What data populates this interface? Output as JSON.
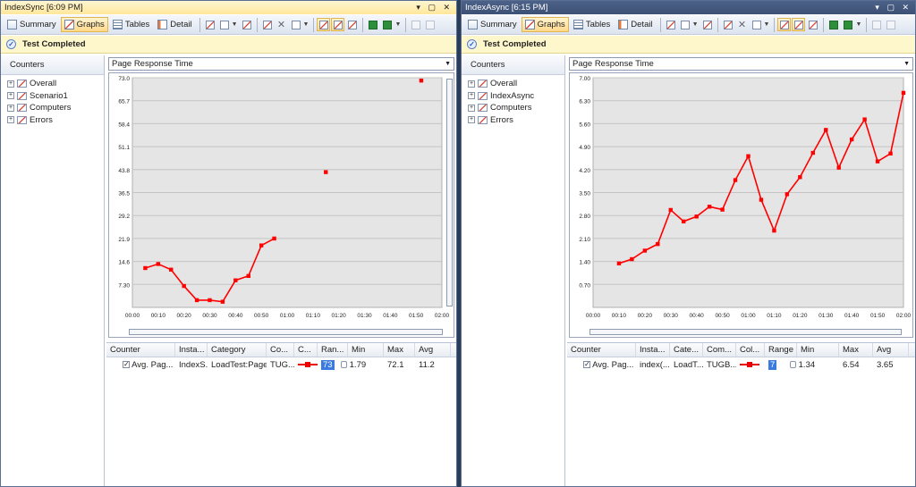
{
  "toolbar": {
    "summary": "Summary",
    "graphs": "Graphs",
    "tables": "Tables",
    "detail": "Detail"
  },
  "status": "Test Completed",
  "counters_header": "Counters",
  "legend_headers": [
    "Counter",
    "Insta...",
    "Category",
    "Co...",
    "C...",
    "Ran...",
    "Min",
    "Max",
    "Avg"
  ],
  "colors": {
    "series": "#ff0000",
    "plot_bg": "#e5e5e5"
  },
  "panes": [
    {
      "title": "IndexSync [6:09 PM]",
      "tree": [
        "Overall",
        "Scenario1",
        "Computers",
        "Errors"
      ],
      "graph_select": "Page Response Time",
      "legend_headers": [
        "Counter",
        "Insta...",
        "Category",
        "Co...",
        "C...",
        "Ran...",
        "Min",
        "Max",
        "Avg"
      ],
      "legend_row": {
        "counter": "Avg. Pag...",
        "instance": "IndexS...",
        "category": "LoadTest:Page",
        "computer": "TUG...",
        "range": "73",
        "min": "1.79",
        "max": "72.1",
        "avg": "11.2"
      },
      "chart_data": {
        "type": "line",
        "ylim": [
          0,
          73.0
        ],
        "yticks": [
          "73.0",
          "65.7",
          "58.4",
          "51.1",
          "43.8",
          "36.5",
          "29.2",
          "21.9",
          "14.6",
          "7.30"
        ],
        "ytick_values": [
          73.0,
          65.7,
          58.4,
          51.1,
          43.8,
          36.5,
          29.2,
          21.9,
          14.6,
          7.3
        ],
        "xticks": [
          "00:00",
          "00:10",
          "00:20",
          "00:30",
          "00:40",
          "00:50",
          "01:00",
          "01:10",
          "01:20",
          "01:30",
          "01:40",
          "01:50",
          "02:00"
        ],
        "xlim_minutes": [
          0,
          120
        ],
        "series": [
          {
            "x_minutes": [
              5,
              10,
              15,
              20,
              25,
              30,
              35,
              40,
              45,
              50,
              55,
              75,
              112
            ],
            "values": [
              12.5,
              13.8,
              12.0,
              6.8,
              2.3,
              2.3,
              1.8,
              8.6,
              10.0,
              19.7,
              21.9,
              43.0,
              72.1
            ],
            "segments": [
              [
                0,
                10
              ],
              [
                11,
                11
              ],
              [
                12,
                12
              ]
            ]
          }
        ]
      }
    },
    {
      "title": "IndexAsync [6:15 PM]",
      "tree": [
        "Overall",
        "IndexAsync",
        "Computers",
        "Errors"
      ],
      "graph_select": "Page Response Time",
      "legend_headers": [
        "Counter",
        "Insta...",
        "Cate...",
        "Com...",
        "Col...",
        "Range",
        "Min",
        "Max",
        "Avg"
      ],
      "legend_row": {
        "counter": "Avg. Pag...",
        "instance": "index(...",
        "category": "LoadT...",
        "computer": "TUGB...",
        "range": "7",
        "min": "1.34",
        "max": "6.54",
        "avg": "3.65"
      },
      "chart_data": {
        "type": "line",
        "ylim": [
          0,
          7.0
        ],
        "yticks": [
          "7.00",
          "6.30",
          "5.60",
          "4.90",
          "4.20",
          "3.50",
          "2.80",
          "2.10",
          "1.40",
          "0.70"
        ],
        "ytick_values": [
          7.0,
          6.3,
          5.6,
          4.9,
          4.2,
          3.5,
          2.8,
          2.1,
          1.4,
          0.7
        ],
        "xticks": [
          "00:00",
          "00:10",
          "00:20",
          "00:30",
          "00:40",
          "00:50",
          "01:00",
          "01:10",
          "01:20",
          "01:30",
          "01:40",
          "01:50",
          "02:00"
        ],
        "xlim_minutes": [
          0,
          120
        ],
        "series": [
          {
            "x_minutes": [
              10,
              15,
              20,
              25,
              30,
              35,
              40,
              45,
              50,
              55,
              60,
              65,
              70,
              75,
              80,
              85,
              90,
              95,
              100,
              105,
              110,
              115,
              120
            ],
            "values": [
              1.34,
              1.47,
              1.73,
              1.93,
              2.97,
              2.62,
              2.77,
              3.07,
              2.98,
              3.88,
              4.61,
              3.28,
              2.34,
              3.45,
              3.97,
              4.71,
              5.41,
              4.26,
              5.12,
              5.73,
              4.45,
              4.69,
              6.54
            ],
            "segments": [
              [
                0,
                22
              ]
            ]
          }
        ]
      }
    }
  ]
}
